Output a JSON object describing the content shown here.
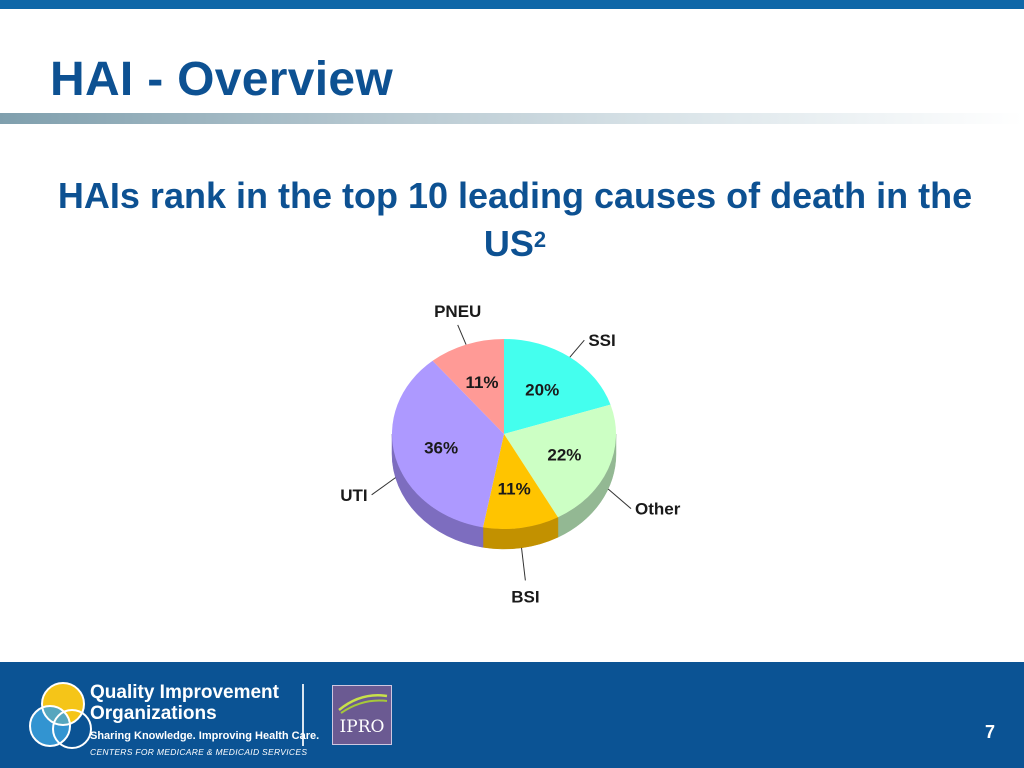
{
  "slide": {
    "title": "HAI - Overview",
    "subtitle": "HAIs rank in the top 10 leading causes of death in the US",
    "subtitle_superscript": "2",
    "page_number": "7"
  },
  "chart_data": {
    "type": "pie",
    "title": "",
    "start_angle_deg": 0,
    "direction": "clockwise",
    "slices": [
      {
        "label": "SSI",
        "value": 20,
        "display": "20%",
        "color": "#44ffee",
        "side_color": "#2cc7b8"
      },
      {
        "label": "Other",
        "value": 22,
        "display": "22%",
        "color": "#ccffc4",
        "side_color": "#93b893"
      },
      {
        "label": "BSI",
        "value": 11,
        "display": "11%",
        "color": "#ffc400",
        "side_color": "#c29100"
      },
      {
        "label": "UTI",
        "value": 36,
        "display": "36%",
        "color": "#ad99ff",
        "side_color": "#7d6dbf"
      },
      {
        "label": "PNEU",
        "value": 11,
        "display": "11%",
        "color": "#ff9a96",
        "side_color": "#c46e6c"
      }
    ]
  },
  "footer": {
    "org_name_line1": "Quality Improvement",
    "org_name_line2": "Organizations",
    "tagline": "Sharing Knowledge. Improving Health Care.",
    "cms_line": "CENTERS FOR MEDICARE & MEDICAID SERVICES",
    "partner_logo_text": "IPRO",
    "colors": {
      "background": "#0b5394",
      "qio_yellow": "#f5c518",
      "qio_blue": "#3aa0dc"
    }
  }
}
